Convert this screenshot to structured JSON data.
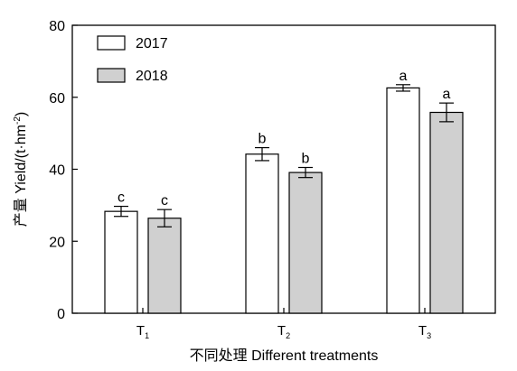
{
  "chart_data": {
    "type": "bar",
    "categories": [
      {
        "base": "T",
        "sub": "1"
      },
      {
        "base": "T",
        "sub": "2"
      },
      {
        "base": "T",
        "sub": "3"
      }
    ],
    "series": [
      {
        "name": "2017",
        "values": [
          28.3,
          44.2,
          62.6
        ],
        "errors": [
          1.4,
          1.8,
          0.9
        ],
        "letters": [
          "c",
          "b",
          "a"
        ],
        "color": "#ffffff"
      },
      {
        "name": "2018",
        "values": [
          26.4,
          39.1,
          55.8
        ],
        "errors": [
          2.4,
          1.4,
          2.6
        ],
        "letters": [
          "c",
          "b",
          "a"
        ],
        "color": "#d0d0d0"
      }
    ],
    "ylabel": {
      "prefix": "产量 Yield/(t·hm",
      "sup": "-2",
      "suffix": ")"
    },
    "xlabel": "不同处理 Different treatments",
    "ylim": [
      0,
      80
    ],
    "yticks": [
      0,
      20,
      40,
      60,
      80
    ],
    "legend_position": "top-left",
    "grid": false
  }
}
